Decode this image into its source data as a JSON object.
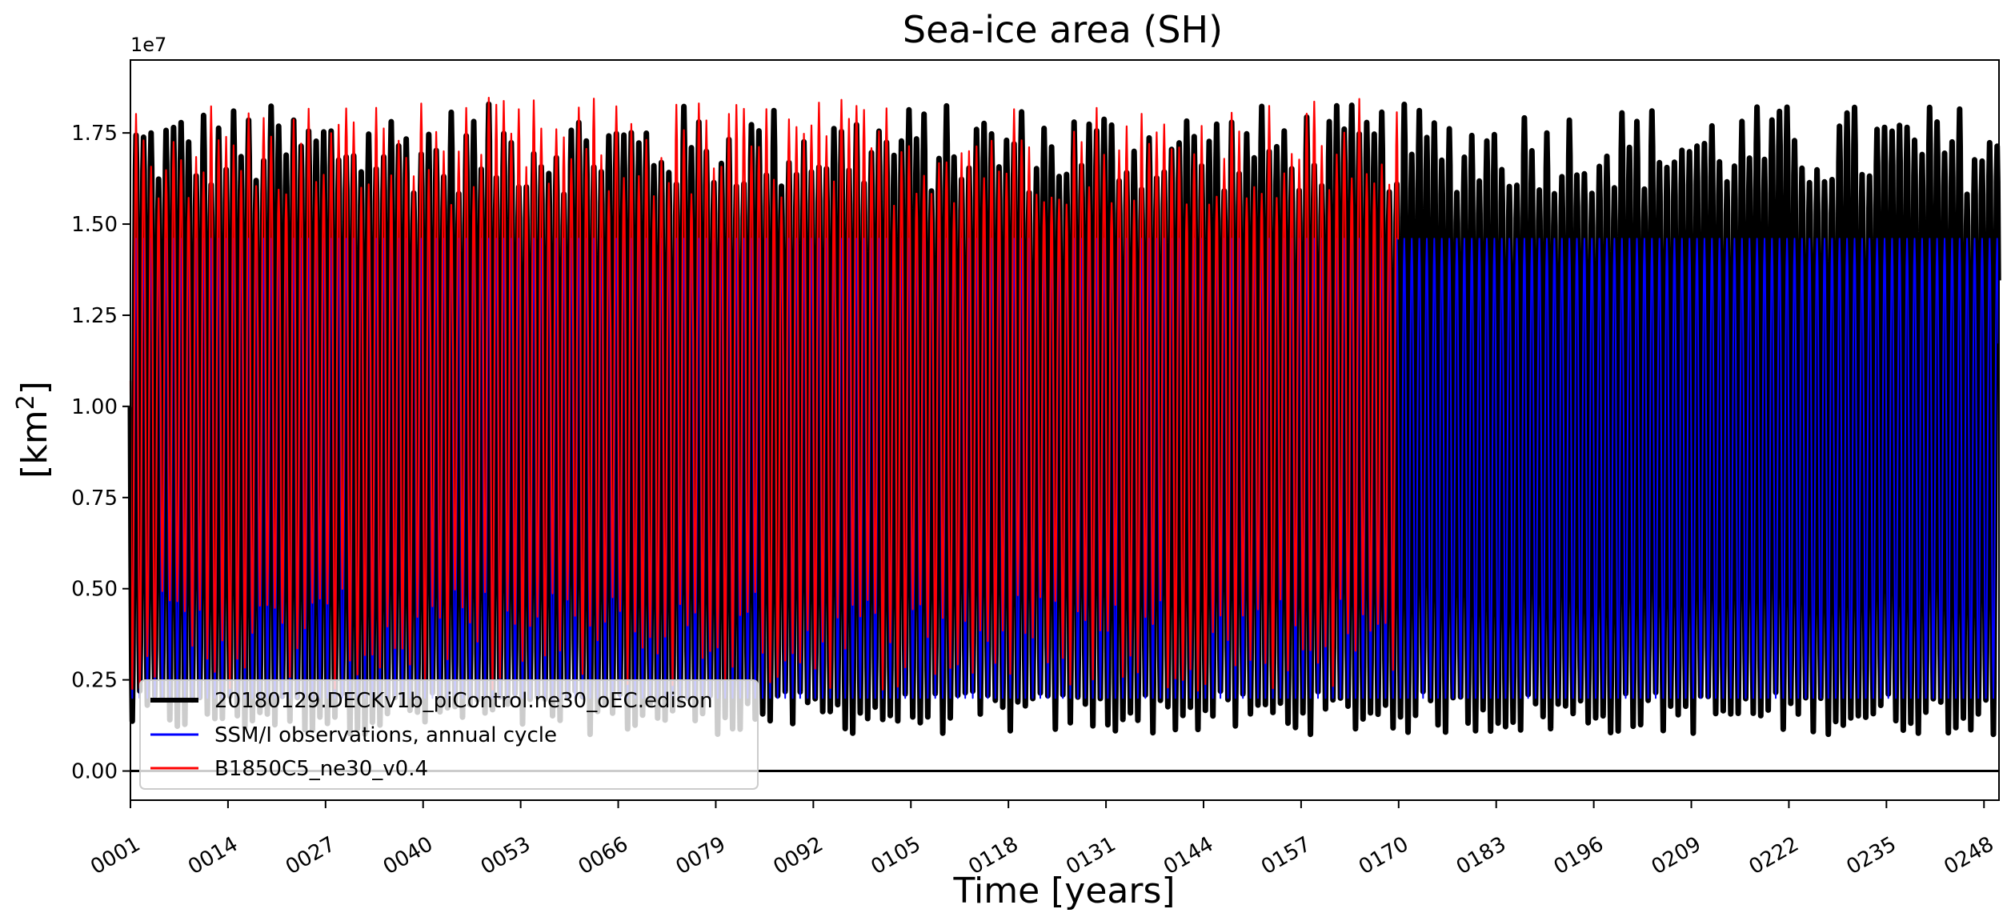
{
  "chart_data": {
    "type": "line",
    "title": "Sea-ice area (SH)",
    "xlabel": "Time [years]",
    "ylabel_base": "[km",
    "ylabel_sup": "2",
    "ylabel_end": "]",
    "y_offset_label": "1e7",
    "xlim": [
      1,
      250
    ],
    "ylim": [
      -0.08,
      1.95
    ],
    "y_ticks": [
      0.0,
      0.25,
      0.5,
      0.75,
      1.0,
      1.25,
      1.5,
      1.75
    ],
    "y_tick_labels": [
      "0.00",
      "0.25",
      "0.50",
      "0.75",
      "1.00",
      "1.25",
      "1.50",
      "1.75"
    ],
    "x_ticks": [
      1,
      14,
      27,
      40,
      53,
      66,
      79,
      92,
      105,
      118,
      131,
      144,
      157,
      170,
      183,
      196,
      209,
      222,
      235,
      248
    ],
    "x_tick_labels": [
      "0001",
      "0014",
      "0027",
      "0040",
      "0053",
      "0066",
      "0079",
      "0092",
      "0105",
      "0118",
      "0131",
      "0144",
      "0157",
      "0170",
      "0183",
      "0196",
      "0209",
      "0222",
      "0235",
      "0248"
    ],
    "zero_line": 0,
    "grid": false,
    "legend_position": "lower-left",
    "series": [
      {
        "name": "20180129.DECKv1b_piControl.ne30_oEC.edison",
        "color": "#000000",
        "years": [
          1,
          250
        ],
        "annual_max_range": [
          1.58,
          1.83
        ],
        "annual_min_range": [
          0.1,
          0.22
        ]
      },
      {
        "name": "SSM/I observations, annual cycle",
        "color": "#0000ff",
        "years": [
          1,
          250
        ],
        "annual_max": 1.46,
        "annual_min": 0.2
      },
      {
        "name": "B1850C5_ne30_v0.4",
        "color": "#ff0000",
        "years": [
          1,
          170
        ],
        "annual_max_range": [
          1.55,
          1.85
        ],
        "annual_min_range": [
          0.22,
          0.5
        ]
      }
    ]
  }
}
